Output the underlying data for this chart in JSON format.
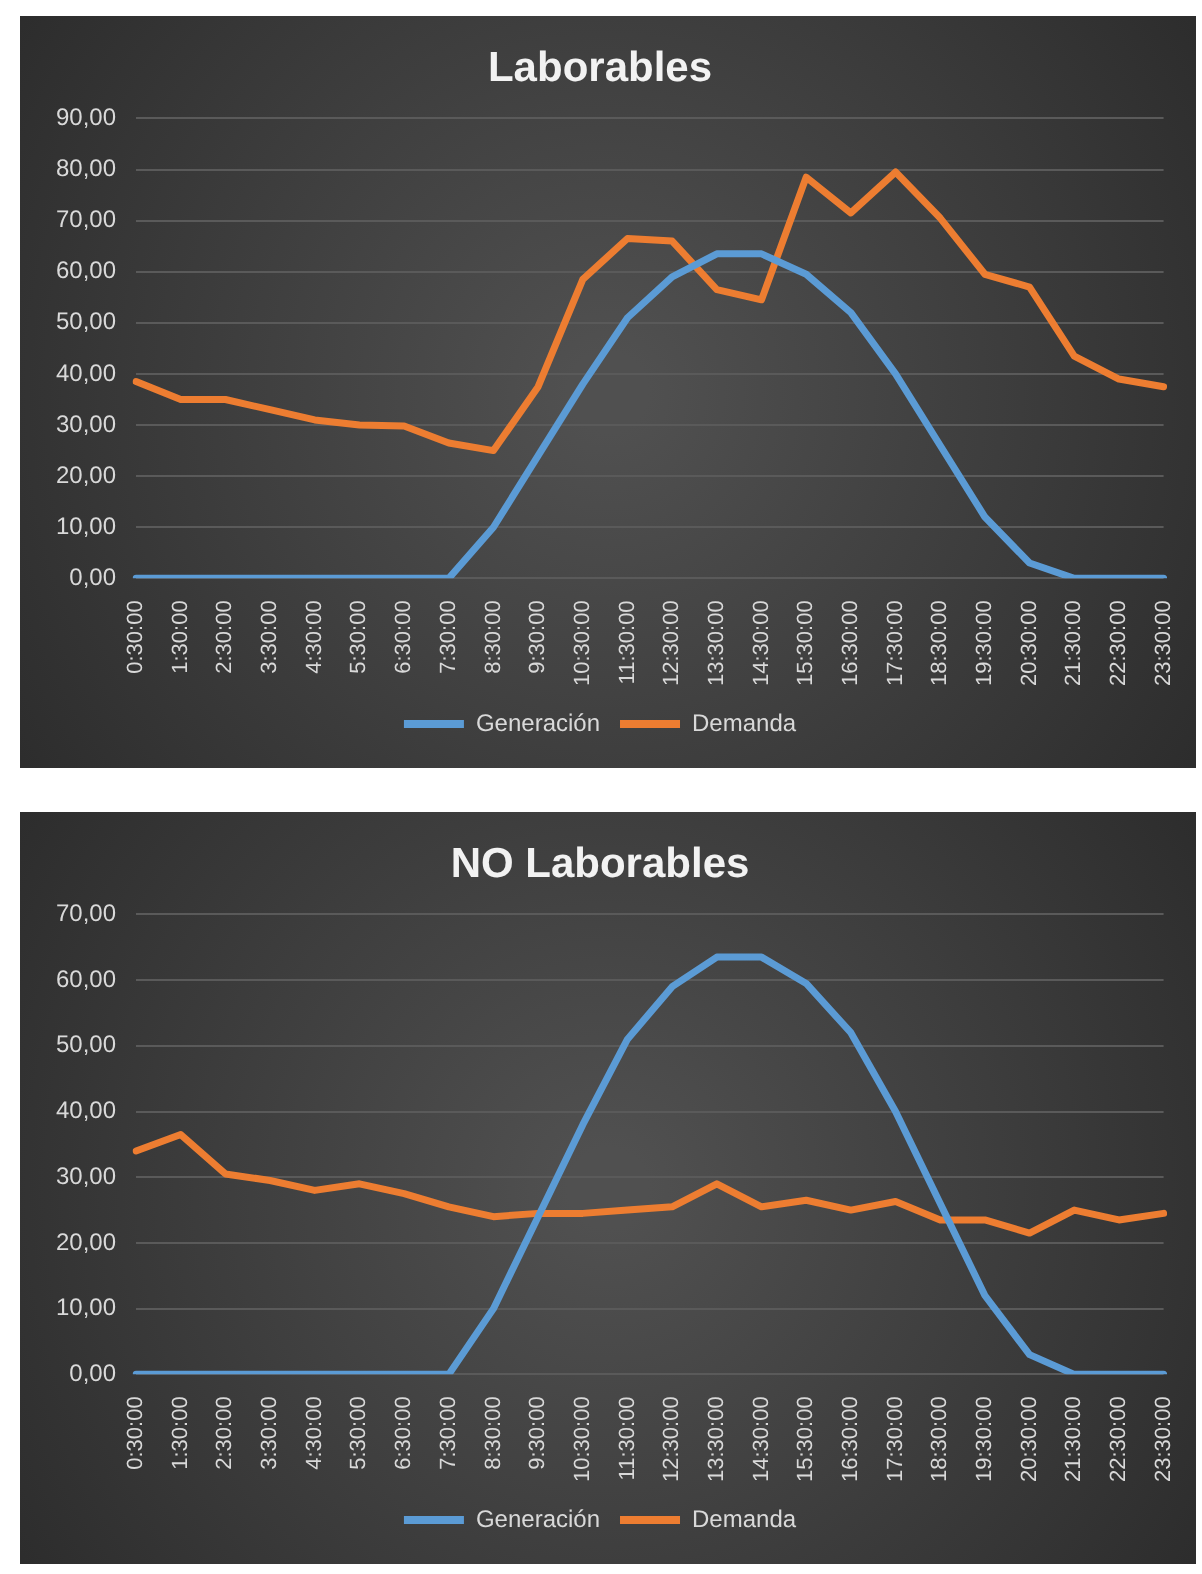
{
  "chart_data": [
    {
      "type": "line",
      "title": "Laborables",
      "categories": [
        "0:30:00",
        "1:30:00",
        "2:30:00",
        "3:30:00",
        "4:30:00",
        "5:30:00",
        "6:30:00",
        "7:30:00",
        "8:30:00",
        "9:30:00",
        "10:30:00",
        "11:30:00",
        "12:30:00",
        "13:30:00",
        "14:30:00",
        "15:30:00",
        "16:30:00",
        "17:30:00",
        "18:30:00",
        "19:30:00",
        "20:30:00",
        "21:30:00",
        "22:30:00",
        "23:30:00"
      ],
      "series": [
        {
          "name": "Generación",
          "color": "#5b9bd5",
          "values": [
            0,
            0,
            0,
            0,
            0,
            0,
            0,
            0,
            10,
            24,
            38,
            51,
            59,
            63.5,
            63.5,
            59.5,
            52,
            40,
            26,
            12,
            3,
            0,
            0,
            0
          ]
        },
        {
          "name": "Demanda",
          "color": "#ed7d31",
          "values": [
            38.5,
            35,
            35,
            33,
            31,
            30,
            29.8,
            26.5,
            25,
            37.5,
            58.5,
            66.5,
            66,
            56.5,
            54.5,
            78.5,
            71.5,
            79.5,
            70.5,
            59.5,
            57,
            43.5,
            39,
            37.5
          ]
        }
      ],
      "ylim": [
        0,
        90
      ],
      "yticks": [
        {
          "value": 0,
          "label": "0,00"
        },
        {
          "value": 10,
          "label": "10,00"
        },
        {
          "value": 20,
          "label": "20,00"
        },
        {
          "value": 30,
          "label": "30,00"
        },
        {
          "value": 40,
          "label": "40,00"
        },
        {
          "value": 50,
          "label": "50,00"
        },
        {
          "value": 60,
          "label": "60,00"
        },
        {
          "value": 70,
          "label": "70,00"
        },
        {
          "value": 80,
          "label": "80,00"
        },
        {
          "value": 90,
          "label": "90,00"
        }
      ],
      "grid": "y",
      "legend": "bottom",
      "marker": "none",
      "line_style": "solid"
    },
    {
      "type": "line",
      "title": "NO Laborables",
      "categories": [
        "0:30:00",
        "1:30:00",
        "2:30:00",
        "3:30:00",
        "4:30:00",
        "5:30:00",
        "6:30:00",
        "7:30:00",
        "8:30:00",
        "9:30:00",
        "10:30:00",
        "11:30:00",
        "12:30:00",
        "13:30:00",
        "14:30:00",
        "15:30:00",
        "16:30:00",
        "17:30:00",
        "18:30:00",
        "19:30:00",
        "20:30:00",
        "21:30:00",
        "22:30:00",
        "23:30:00"
      ],
      "series": [
        {
          "name": "Generación",
          "color": "#5b9bd5",
          "values": [
            0,
            0,
            0,
            0,
            0,
            0,
            0,
            0,
            10,
            24,
            38,
            51,
            59,
            63.5,
            63.5,
            59.5,
            52,
            40,
            26,
            12,
            3,
            0,
            0,
            0
          ]
        },
        {
          "name": "Demanda",
          "color": "#ed7d31",
          "values": [
            34,
            36.5,
            30.5,
            29.5,
            28,
            29,
            27.5,
            25.5,
            24,
            24.5,
            24.5,
            25,
            25.5,
            29,
            25.5,
            26.5,
            25,
            26.3,
            23.5,
            23.5,
            21.5,
            25,
            23.5,
            24.5
          ]
        }
      ],
      "ylim": [
        0,
        70
      ],
      "yticks": [
        {
          "value": 0,
          "label": "0,00"
        },
        {
          "value": 10,
          "label": "10,00"
        },
        {
          "value": 20,
          "label": "20,00"
        },
        {
          "value": 30,
          "label": "30,00"
        },
        {
          "value": 40,
          "label": "40,00"
        },
        {
          "value": 50,
          "label": "50,00"
        },
        {
          "value": 60,
          "label": "60,00"
        },
        {
          "value": 70,
          "label": "70,00"
        }
      ],
      "grid": "y",
      "legend": "bottom",
      "marker": "none",
      "line_style": "solid"
    }
  ]
}
